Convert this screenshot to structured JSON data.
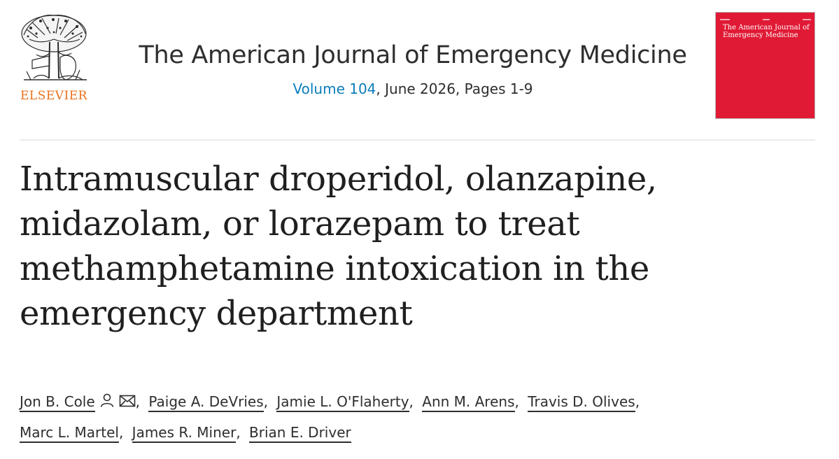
{
  "publisher": {
    "name": "ELSEVIER",
    "logo_icon": "elsevier-tree-logo-icon",
    "brand_color": "#e9711c"
  },
  "journal": {
    "title": "The American Journal of Emergency Medicine",
    "volume_label": "Volume 104",
    "issue_rest": ", June 2026, Pages 1-9",
    "link_color": "#0c7dbb",
    "cover": {
      "title": "The American Journal of Emergency Medicine",
      "color": "#e01a35"
    }
  },
  "article": {
    "title": "Intramuscular droperidol, olanzapine, midazolam, or lorazepam to treat methamphetamine intoxication in the emergency department",
    "authors": [
      {
        "name": "Jon B. Cole",
        "icons": [
          "person-icon",
          "envelope-icon"
        ]
      },
      {
        "name": "Paige A. DeVries"
      },
      {
        "name": "Jamie L. O'Flaherty"
      },
      {
        "name": "Ann M. Arens"
      },
      {
        "name": "Travis D. Olives"
      },
      {
        "name": "Marc L. Martel"
      },
      {
        "name": "James R. Miner"
      },
      {
        "name": "Brian E. Driver"
      }
    ],
    "separator": ","
  }
}
